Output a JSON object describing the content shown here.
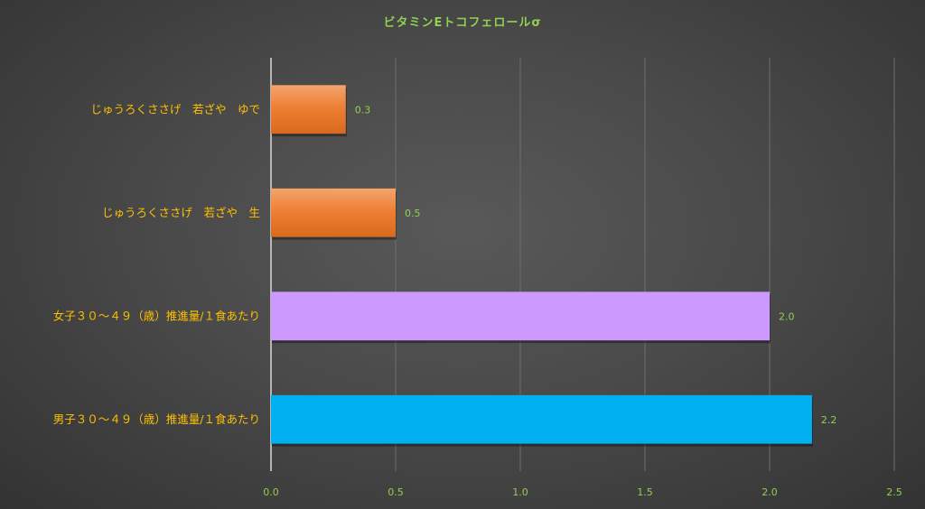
{
  "chart_data": {
    "type": "bar",
    "orientation": "horizontal",
    "title": "ビタミンEトコフェロールσ",
    "categories": [
      "じゅうろくささげ　若ざや　ゆで",
      "じゅうろくささげ　若ざや　生",
      "女子３０～４９（歳）推進量/１食あたり",
      "男子３０～４９（歳）推進量/１食あたり"
    ],
    "values": [
      0.3,
      0.5,
      2.0,
      2.17
    ],
    "data_labels": [
      "0.3",
      "0.5",
      "2.0",
      "2.2"
    ],
    "bar_colors": [
      "#ed7d31",
      "#ed7d31",
      "#cc99ff",
      "#00b0f0"
    ],
    "xlim": [
      0,
      2.5
    ],
    "x_ticks": [
      "0.0",
      "0.5",
      "1.0",
      "1.5",
      "2.0",
      "2.5"
    ],
    "grid": true,
    "legend": "none"
  },
  "colors": {
    "title": "#92d050",
    "category_label": "#ffc000",
    "tick_label": "#92d050",
    "gridline": "#6e6e6e",
    "axis": "#d9d9d9"
  }
}
